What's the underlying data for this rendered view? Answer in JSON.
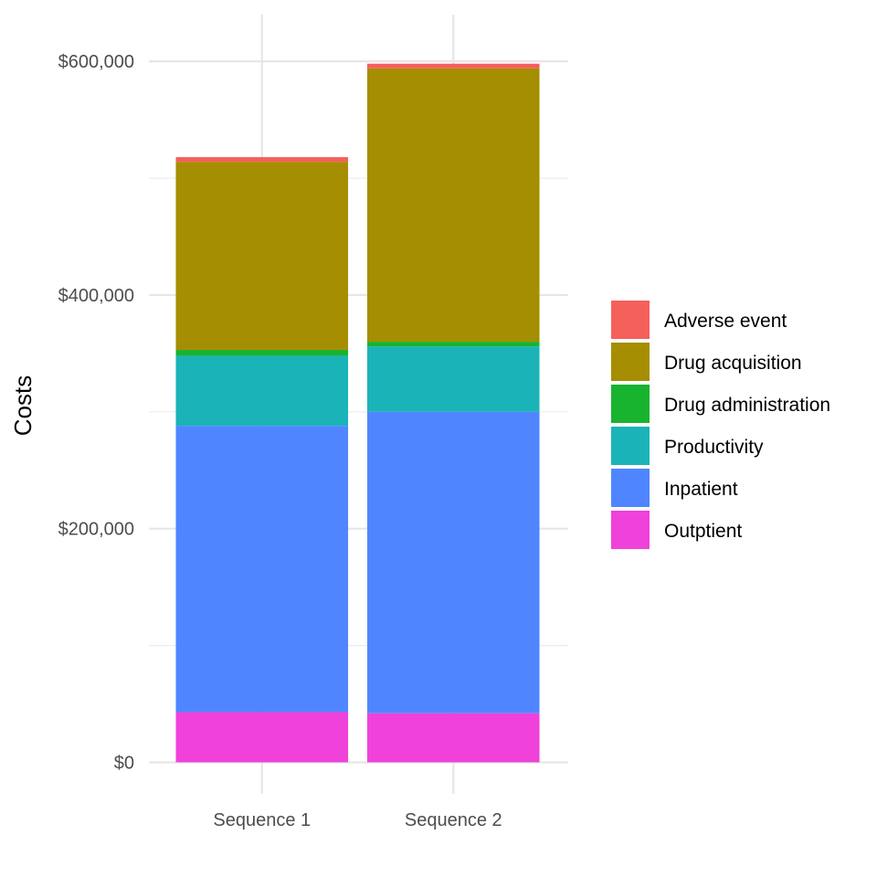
{
  "chart_data": {
    "type": "bar",
    "stacked": true,
    "title": "",
    "xlabel": "",
    "ylabel": "Costs",
    "ylim": [
      -27000,
      640000
    ],
    "y_ticks": [
      0,
      200000,
      400000,
      600000
    ],
    "y_tick_labels": [
      "$0",
      "$200,000",
      "$400,000",
      "$600,000"
    ],
    "grid": true,
    "legend_position": "right",
    "categories": [
      "Sequence 1",
      "Sequence 2"
    ],
    "series": [
      {
        "name": "Outptient",
        "color": "#F041DB",
        "values": [
          43000,
          42000
        ]
      },
      {
        "name": "Inpatient",
        "color": "#4F86FF",
        "values": [
          245000,
          258000
        ]
      },
      {
        "name": "Productivity",
        "color": "#1AB3B8",
        "values": [
          60000,
          56000
        ]
      },
      {
        "name": "Drug administration",
        "color": "#18B32F",
        "values": [
          5000,
          4000
        ]
      },
      {
        "name": "Drug acquisition",
        "color": "#A68E02",
        "values": [
          161000,
          234000
        ]
      },
      {
        "name": "Adverse event",
        "color": "#F5605B",
        "values": [
          4000,
          4000
        ]
      }
    ]
  }
}
